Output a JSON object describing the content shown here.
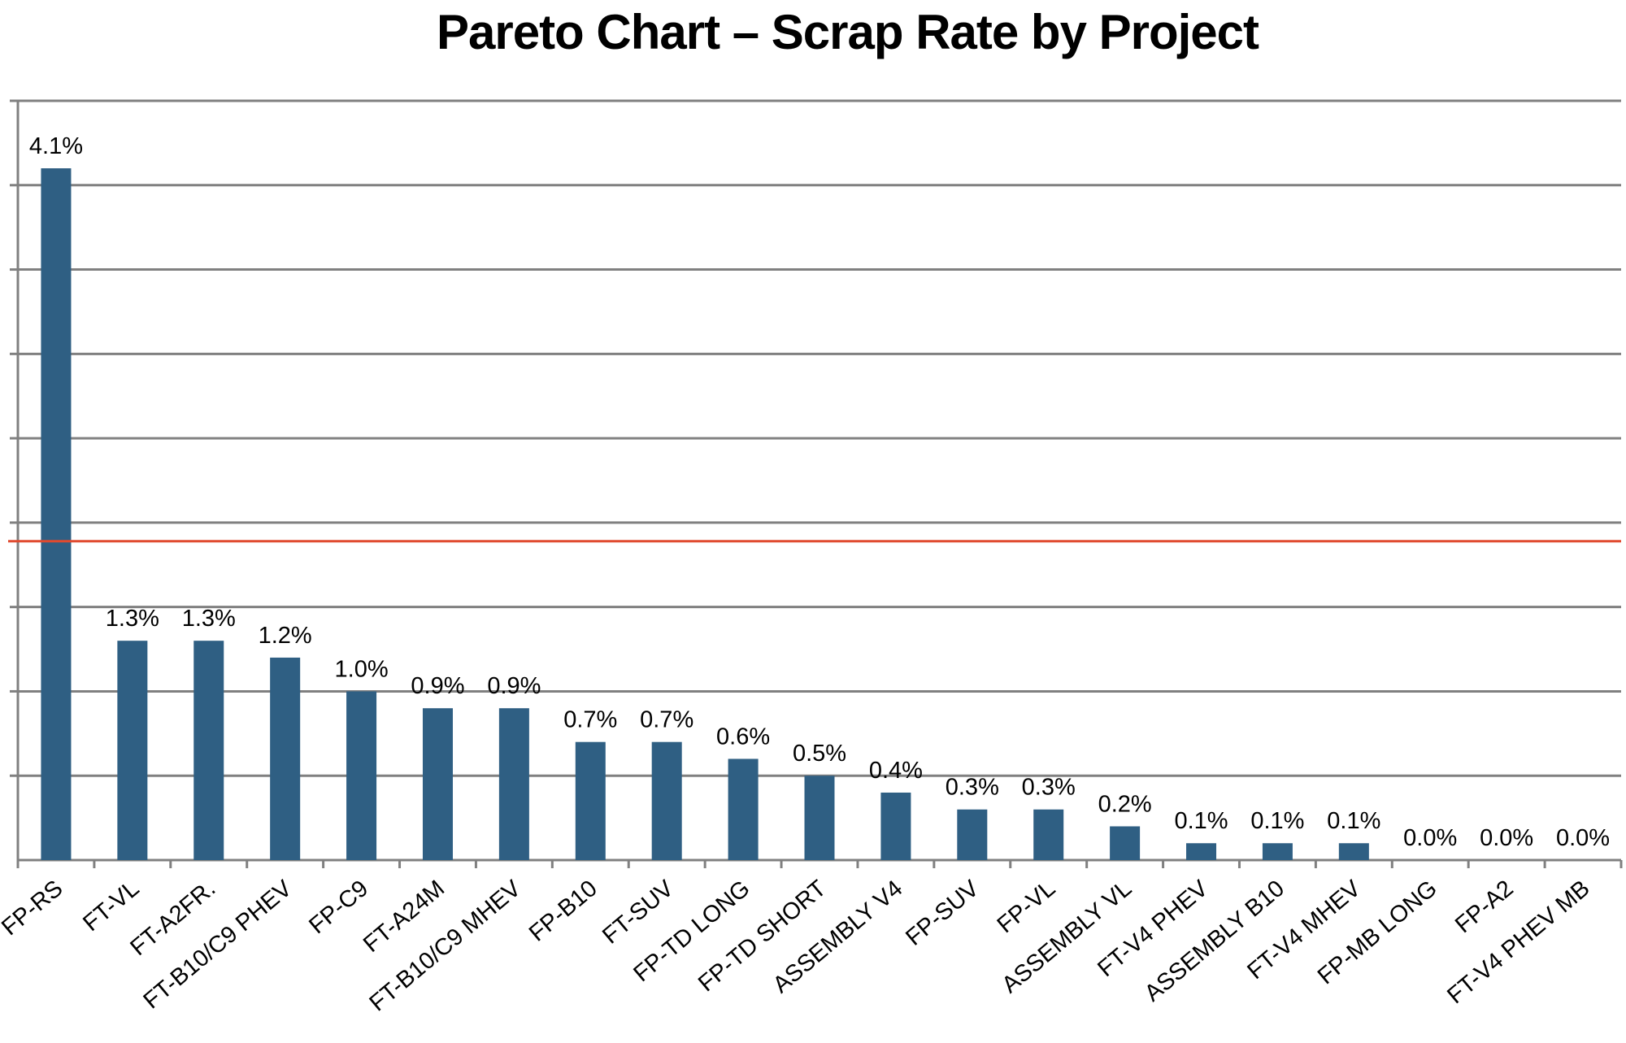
{
  "chart_data": {
    "type": "bar",
    "title": "Pareto Chart – Scrap Rate by Project",
    "xlabel": "",
    "ylabel": "",
    "categories": [
      "FP-RS",
      "FT-VL",
      "FT-A2FR.",
      "FT-B10/C9 PHEV",
      "FP-C9",
      "FT-A24M",
      "FT-B10/C9 MHEV",
      "FP-B10",
      "FT-SUV",
      "FP-TD LONG",
      "FP-TD SHORT",
      "ASSEMBLY V4",
      "FP-SUV",
      "FP-VL",
      "ASSEMBLY VL",
      "FT-V4 PHEV",
      "ASSEMBLY B10",
      "FT-V4 MHEV",
      "FP-MB LONG",
      "FP-A2",
      "FT-V4 PHEV MB"
    ],
    "values": [
      4.1,
      1.3,
      1.3,
      1.2,
      1.0,
      0.9,
      0.9,
      0.7,
      0.7,
      0.6,
      0.5,
      0.4,
      0.3,
      0.3,
      0.2,
      0.1,
      0.1,
      0.1,
      0.0,
      0.0,
      0.0
    ],
    "data_labels": [
      "4.1%",
      "1.3%",
      "1.3%",
      "1.2%",
      "1.0%",
      "0.9%",
      "0.9%",
      "0.7%",
      "0.7%",
      "0.6%",
      "0.5%",
      "0.4%",
      "0.3%",
      "0.3%",
      "0.2%",
      "0.1%",
      "0.1%",
      "0.1%",
      "0.0%",
      "0.0%",
      "0.0%"
    ],
    "ylim": [
      0,
      4.5
    ],
    "y_gridline_step": 0.5,
    "threshold_line": {
      "value": 1.89,
      "color": "#e04a2f"
    },
    "grid": true,
    "y_tick_labels_shown": false,
    "legend": "none",
    "bar_color": "#2f5f83"
  }
}
